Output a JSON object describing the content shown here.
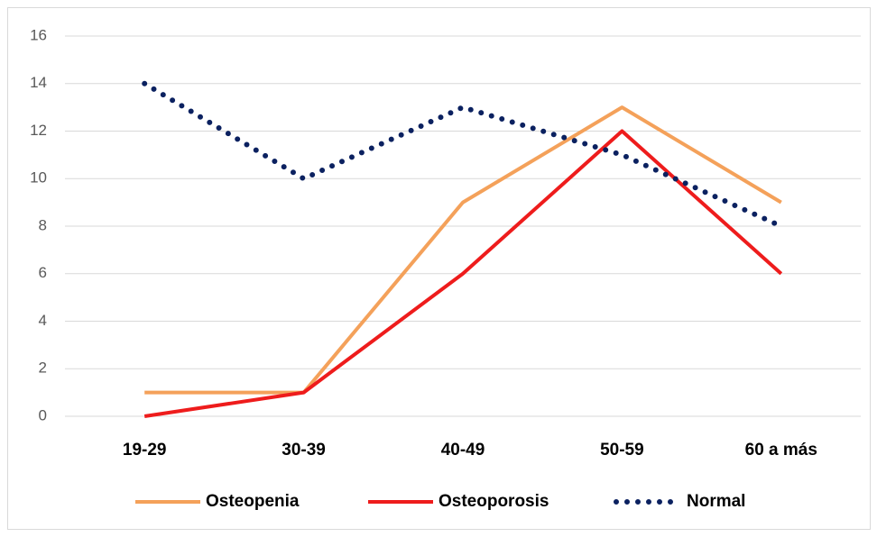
{
  "chart_data": {
    "type": "line",
    "categories": [
      "19-29",
      "30-39",
      "40-49",
      "50-59",
      "60 a más"
    ],
    "series": [
      {
        "name": "Osteopenia",
        "color": "#f4a15a",
        "style": "solid",
        "values": [
          1,
          1,
          9,
          13,
          9
        ]
      },
      {
        "name": "Osteoporosis",
        "color": "#ee1c1c",
        "style": "solid",
        "values": [
          0,
          1,
          6,
          12,
          6
        ]
      },
      {
        "name": "Normal",
        "color": "#0b2160",
        "style": "dotted",
        "values": [
          14,
          10,
          13,
          11,
          8
        ]
      }
    ],
    "ylim": [
      0,
      16
    ],
    "yticks": [
      0,
      2,
      4,
      6,
      8,
      10,
      12,
      14,
      16
    ],
    "grid": true,
    "legend": "bottom"
  }
}
